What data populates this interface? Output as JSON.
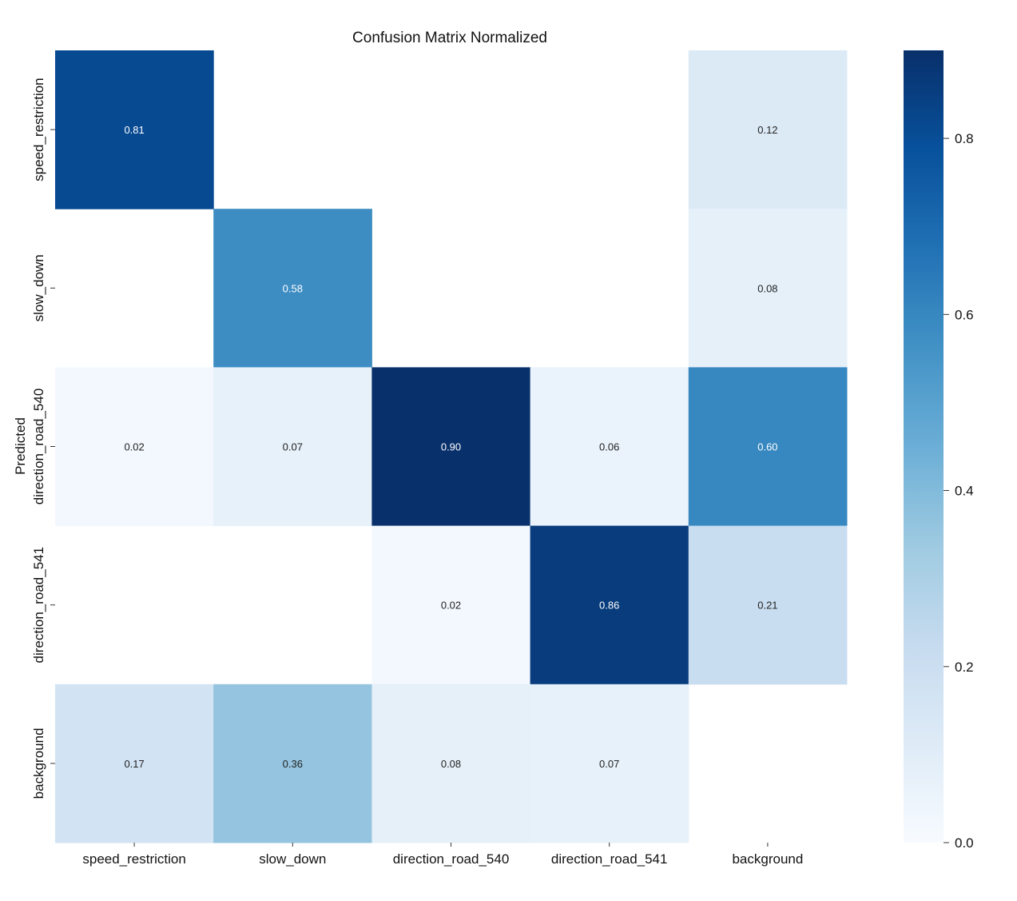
{
  "chart_data": {
    "type": "heatmap",
    "title": "Confusion Matrix Normalized",
    "ylabel": "Predicted",
    "xlabel": "",
    "x_categories": [
      "speed_restriction",
      "slow_down",
      "direction_road_540",
      "direction_road_541",
      "background"
    ],
    "y_categories": [
      "speed_restriction",
      "slow_down",
      "direction_road_540",
      "direction_road_541",
      "background"
    ],
    "values": [
      [
        0.81,
        null,
        null,
        null,
        0.12
      ],
      [
        null,
        0.58,
        null,
        null,
        0.08
      ],
      [
        0.02,
        0.07,
        0.9,
        0.06,
        0.6
      ],
      [
        null,
        null,
        0.02,
        0.86,
        0.21
      ],
      [
        0.17,
        0.36,
        0.08,
        0.07,
        null
      ]
    ],
    "labels": [
      [
        "0.81",
        "",
        "",
        "",
        "0.12"
      ],
      [
        "",
        "0.58",
        "",
        "",
        "0.08"
      ],
      [
        "0.02",
        "0.07",
        "0.90",
        "0.06",
        "0.60"
      ],
      [
        "",
        "",
        "0.02",
        "0.86",
        "0.21"
      ],
      [
        "0.17",
        "0.36",
        "0.08",
        "0.07",
        ""
      ]
    ],
    "colormap": "Blues",
    "vmin": 0.0,
    "vmax": 0.9,
    "colorbar_ticks": [
      "0.0",
      "0.2",
      "0.4",
      "0.6",
      "0.8"
    ],
    "colorbar_tick_values": [
      0.0,
      0.2,
      0.4,
      0.6,
      0.8
    ],
    "grid": false,
    "legend": "colorbar-right"
  }
}
